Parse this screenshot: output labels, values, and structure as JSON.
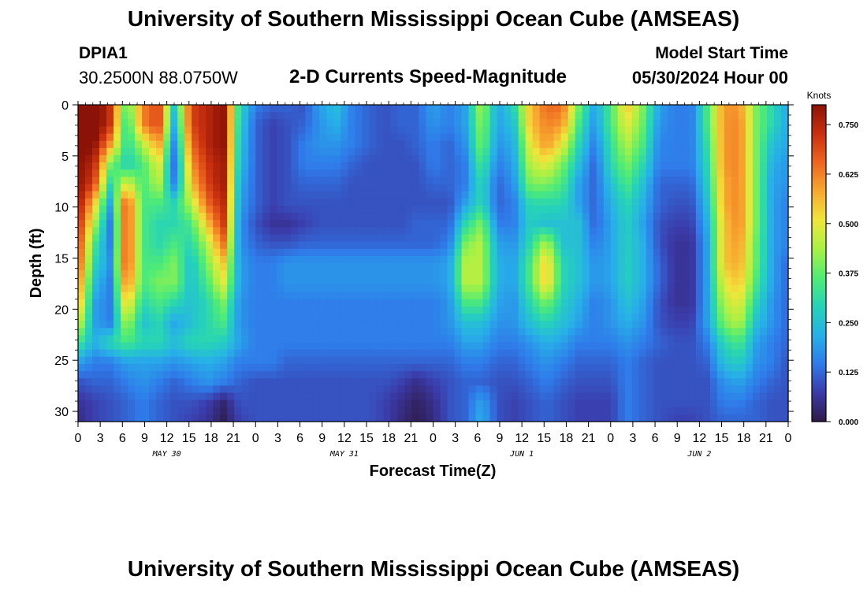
{
  "title_top": "University of Southern Mississippi Ocean Cube (AMSEAS)",
  "title_bottom": "University of Southern Mississippi Ocean Cube (AMSEAS)",
  "station": {
    "id": "DPIA1",
    "coords": "30.2500N  88.0750W"
  },
  "model": {
    "label": "Model Start Time",
    "date": "05/30/2024 Hour 00"
  },
  "chart_data": {
    "type": "heatmap",
    "title": "2-D Currents Speed-Magnitude",
    "xlabel": "Forecast Time(Z)",
    "ylabel": "Depth (ft)",
    "x_range_hours": [
      0,
      96
    ],
    "x_ticks": [
      "0",
      "3",
      "6",
      "9",
      "12",
      "15",
      "18",
      "21",
      "0",
      "3",
      "6",
      "9",
      "12",
      "15",
      "18",
      "21",
      "0",
      "3",
      "6",
      "9",
      "12",
      "15",
      "18",
      "21",
      "0",
      "3",
      "6",
      "9",
      "12",
      "15",
      "18",
      "21",
      "0"
    ],
    "date_labels": [
      "MAY 30",
      "MAY 31",
      "JUN 1",
      "JUN 2"
    ],
    "ylim": [
      0,
      31
    ],
    "y_ticks": [
      "0",
      "5",
      "10",
      "15",
      "20",
      "25",
      "30"
    ],
    "colorbar": {
      "label": "Knots",
      "range": [
        0,
        0.8
      ],
      "ticks": [
        "0.750",
        "0.625",
        "0.500",
        "0.375",
        "0.250",
        "0.125",
        "0.000"
      ],
      "colors": [
        "#2e1a47",
        "#3b3aa8",
        "#2f7bea",
        "#27b0e8",
        "#26d3b8",
        "#51ec74",
        "#a9f145",
        "#f0e63b",
        "#f7a930",
        "#ee6520",
        "#c8300e",
        "#8b1206"
      ]
    },
    "speed_knots": [
      [
        0.82,
        0.85,
        0.72,
        0.35,
        0.62,
        0.7,
        0.25,
        0.7,
        0.75,
        0.8,
        0.3,
        0.15,
        0.12,
        0.12,
        0.1,
        0.2,
        0.25,
        0.15,
        0.12,
        0.1,
        0.12,
        0.12,
        0.2,
        0.15,
        0.2,
        0.45,
        0.2,
        0.3,
        0.55,
        0.65,
        0.65,
        0.4,
        0.2,
        0.35,
        0.55,
        0.4,
        0.2,
        0.15,
        0.15,
        0.35,
        0.6,
        0.6,
        0.4,
        0.3,
        0.2
      ],
      [
        0.82,
        0.85,
        0.72,
        0.3,
        0.62,
        0.7,
        0.2,
        0.7,
        0.75,
        0.8,
        0.28,
        0.12,
        0.08,
        0.1,
        0.12,
        0.18,
        0.22,
        0.15,
        0.12,
        0.1,
        0.12,
        0.12,
        0.18,
        0.15,
        0.2,
        0.42,
        0.2,
        0.25,
        0.55,
        0.62,
        0.6,
        0.35,
        0.18,
        0.35,
        0.5,
        0.38,
        0.18,
        0.15,
        0.15,
        0.35,
        0.6,
        0.62,
        0.4,
        0.3,
        0.2
      ],
      [
        0.82,
        0.8,
        0.6,
        0.3,
        0.45,
        0.6,
        0.15,
        0.65,
        0.75,
        0.8,
        0.26,
        0.12,
        0.08,
        0.1,
        0.15,
        0.18,
        0.18,
        0.15,
        0.12,
        0.1,
        0.1,
        0.12,
        0.15,
        0.12,
        0.18,
        0.4,
        0.18,
        0.22,
        0.5,
        0.6,
        0.5,
        0.3,
        0.15,
        0.32,
        0.45,
        0.35,
        0.16,
        0.15,
        0.15,
        0.32,
        0.6,
        0.62,
        0.4,
        0.25,
        0.2
      ],
      [
        0.8,
        0.75,
        0.4,
        0.28,
        0.35,
        0.5,
        0.12,
        0.6,
        0.72,
        0.78,
        0.25,
        0.12,
        0.08,
        0.1,
        0.15,
        0.15,
        0.15,
        0.12,
        0.1,
        0.1,
        0.1,
        0.1,
        0.15,
        0.12,
        0.15,
        0.35,
        0.15,
        0.2,
        0.45,
        0.5,
        0.4,
        0.25,
        0.12,
        0.3,
        0.4,
        0.3,
        0.15,
        0.15,
        0.15,
        0.3,
        0.6,
        0.62,
        0.4,
        0.22,
        0.18
      ],
      [
        0.8,
        0.7,
        0.3,
        0.5,
        0.35,
        0.45,
        0.15,
        0.55,
        0.7,
        0.78,
        0.22,
        0.12,
        0.08,
        0.1,
        0.12,
        0.12,
        0.12,
        0.1,
        0.1,
        0.1,
        0.1,
        0.1,
        0.12,
        0.12,
        0.15,
        0.3,
        0.12,
        0.18,
        0.4,
        0.4,
        0.35,
        0.2,
        0.12,
        0.25,
        0.35,
        0.25,
        0.12,
        0.12,
        0.12,
        0.28,
        0.58,
        0.62,
        0.4,
        0.2,
        0.18
      ],
      [
        0.78,
        0.55,
        0.2,
        0.7,
        0.35,
        0.35,
        0.3,
        0.45,
        0.65,
        0.75,
        0.2,
        0.12,
        0.08,
        0.1,
        0.1,
        0.1,
        0.1,
        0.1,
        0.1,
        0.1,
        0.1,
        0.1,
        0.1,
        0.1,
        0.2,
        0.3,
        0.12,
        0.15,
        0.3,
        0.3,
        0.3,
        0.2,
        0.12,
        0.22,
        0.3,
        0.22,
        0.12,
        0.1,
        0.1,
        0.25,
        0.58,
        0.62,
        0.4,
        0.2,
        0.15
      ],
      [
        0.75,
        0.45,
        0.15,
        0.7,
        0.35,
        0.3,
        0.3,
        0.35,
        0.55,
        0.72,
        0.18,
        0.1,
        0.06,
        0.06,
        0.08,
        0.1,
        0.1,
        0.1,
        0.1,
        0.1,
        0.1,
        0.12,
        0.12,
        0.12,
        0.3,
        0.4,
        0.15,
        0.15,
        0.28,
        0.25,
        0.25,
        0.25,
        0.12,
        0.2,
        0.28,
        0.2,
        0.1,
        0.08,
        0.08,
        0.22,
        0.55,
        0.62,
        0.4,
        0.2,
        0.15
      ],
      [
        0.72,
        0.35,
        0.15,
        0.7,
        0.35,
        0.3,
        0.35,
        0.3,
        0.45,
        0.65,
        0.18,
        0.12,
        0.1,
        0.1,
        0.12,
        0.12,
        0.12,
        0.12,
        0.12,
        0.12,
        0.12,
        0.12,
        0.12,
        0.15,
        0.4,
        0.45,
        0.2,
        0.18,
        0.3,
        0.45,
        0.25,
        0.25,
        0.15,
        0.2,
        0.28,
        0.22,
        0.1,
        0.06,
        0.06,
        0.2,
        0.55,
        0.6,
        0.38,
        0.2,
        0.15
      ],
      [
        0.7,
        0.3,
        0.18,
        0.7,
        0.35,
        0.35,
        0.4,
        0.25,
        0.4,
        0.55,
        0.2,
        0.15,
        0.15,
        0.18,
        0.18,
        0.18,
        0.18,
        0.18,
        0.18,
        0.18,
        0.18,
        0.18,
        0.18,
        0.2,
        0.45,
        0.45,
        0.22,
        0.2,
        0.35,
        0.55,
        0.3,
        0.25,
        0.18,
        0.2,
        0.28,
        0.22,
        0.12,
        0.06,
        0.06,
        0.2,
        0.55,
        0.58,
        0.38,
        0.2,
        0.12
      ],
      [
        0.65,
        0.25,
        0.15,
        0.65,
        0.35,
        0.4,
        0.4,
        0.25,
        0.35,
        0.5,
        0.2,
        0.15,
        0.15,
        0.18,
        0.18,
        0.18,
        0.18,
        0.18,
        0.18,
        0.18,
        0.18,
        0.18,
        0.18,
        0.2,
        0.45,
        0.45,
        0.22,
        0.2,
        0.35,
        0.55,
        0.3,
        0.25,
        0.18,
        0.2,
        0.28,
        0.22,
        0.12,
        0.06,
        0.06,
        0.2,
        0.5,
        0.55,
        0.35,
        0.2,
        0.12
      ],
      [
        0.6,
        0.2,
        0.15,
        0.55,
        0.3,
        0.35,
        0.3,
        0.25,
        0.3,
        0.4,
        0.18,
        0.15,
        0.15,
        0.15,
        0.15,
        0.15,
        0.15,
        0.15,
        0.15,
        0.15,
        0.15,
        0.15,
        0.15,
        0.18,
        0.35,
        0.35,
        0.2,
        0.18,
        0.3,
        0.4,
        0.28,
        0.22,
        0.15,
        0.18,
        0.25,
        0.2,
        0.1,
        0.06,
        0.06,
        0.2,
        0.45,
        0.5,
        0.3,
        0.18,
        0.12
      ],
      [
        0.5,
        0.2,
        0.15,
        0.45,
        0.25,
        0.3,
        0.2,
        0.25,
        0.3,
        0.35,
        0.18,
        0.15,
        0.15,
        0.15,
        0.15,
        0.15,
        0.15,
        0.15,
        0.15,
        0.15,
        0.15,
        0.15,
        0.15,
        0.18,
        0.25,
        0.25,
        0.18,
        0.18,
        0.25,
        0.3,
        0.25,
        0.2,
        0.15,
        0.18,
        0.22,
        0.18,
        0.1,
        0.08,
        0.08,
        0.2,
        0.4,
        0.45,
        0.25,
        0.18,
        0.12
      ],
      [
        0.35,
        0.22,
        0.3,
        0.35,
        0.3,
        0.3,
        0.25,
        0.3,
        0.3,
        0.28,
        0.2,
        0.15,
        0.15,
        0.15,
        0.15,
        0.15,
        0.15,
        0.15,
        0.15,
        0.15,
        0.15,
        0.15,
        0.15,
        0.15,
        0.2,
        0.2,
        0.15,
        0.15,
        0.18,
        0.22,
        0.2,
        0.15,
        0.15,
        0.15,
        0.18,
        0.15,
        0.12,
        0.1,
        0.1,
        0.15,
        0.3,
        0.35,
        0.2,
        0.15,
        0.12
      ],
      [
        0.2,
        0.15,
        0.15,
        0.2,
        0.2,
        0.2,
        0.18,
        0.2,
        0.22,
        0.2,
        0.15,
        0.15,
        0.15,
        0.12,
        0.12,
        0.12,
        0.12,
        0.12,
        0.12,
        0.12,
        0.12,
        0.12,
        0.12,
        0.12,
        0.15,
        0.15,
        0.12,
        0.12,
        0.15,
        0.18,
        0.15,
        0.12,
        0.12,
        0.12,
        0.15,
        0.12,
        0.1,
        0.1,
        0.1,
        0.12,
        0.25,
        0.28,
        0.18,
        0.15,
        0.1
      ],
      [
        0.1,
        0.12,
        0.12,
        0.15,
        0.18,
        0.15,
        0.12,
        0.15,
        0.18,
        0.15,
        0.12,
        0.1,
        0.1,
        0.1,
        0.1,
        0.1,
        0.1,
        0.1,
        0.1,
        0.1,
        0.08,
        0.05,
        0.08,
        0.1,
        0.12,
        0.12,
        0.1,
        0.1,
        0.12,
        0.15,
        0.12,
        0.1,
        0.1,
        0.1,
        0.15,
        0.12,
        0.1,
        0.1,
        0.1,
        0.1,
        0.18,
        0.2,
        0.15,
        0.12,
        0.1
      ],
      [
        0.06,
        0.08,
        0.1,
        0.12,
        0.15,
        0.12,
        0.1,
        0.1,
        0.08,
        0.03,
        0.1,
        0.1,
        0.1,
        0.1,
        0.1,
        0.1,
        0.1,
        0.1,
        0.1,
        0.08,
        0.05,
        0.02,
        0.05,
        0.1,
        0.12,
        0.2,
        0.1,
        0.08,
        0.1,
        0.12,
        0.1,
        0.08,
        0.08,
        0.08,
        0.15,
        0.12,
        0.1,
        0.1,
        0.1,
        0.1,
        0.15,
        0.15,
        0.12,
        0.1,
        0.1
      ],
      [
        0.04,
        0.08,
        0.1,
        0.12,
        0.15,
        0.12,
        0.1,
        0.08,
        0.06,
        0.01,
        0.08,
        0.1,
        0.1,
        0.1,
        0.1,
        0.1,
        0.1,
        0.1,
        0.1,
        0.08,
        0.04,
        0.01,
        0.04,
        0.1,
        0.12,
        0.22,
        0.1,
        0.08,
        0.1,
        0.12,
        0.1,
        0.08,
        0.08,
        0.08,
        0.15,
        0.12,
        0.1,
        0.08,
        0.08,
        0.1,
        0.12,
        0.12,
        0.12,
        0.1,
        0.1
      ]
    ]
  }
}
